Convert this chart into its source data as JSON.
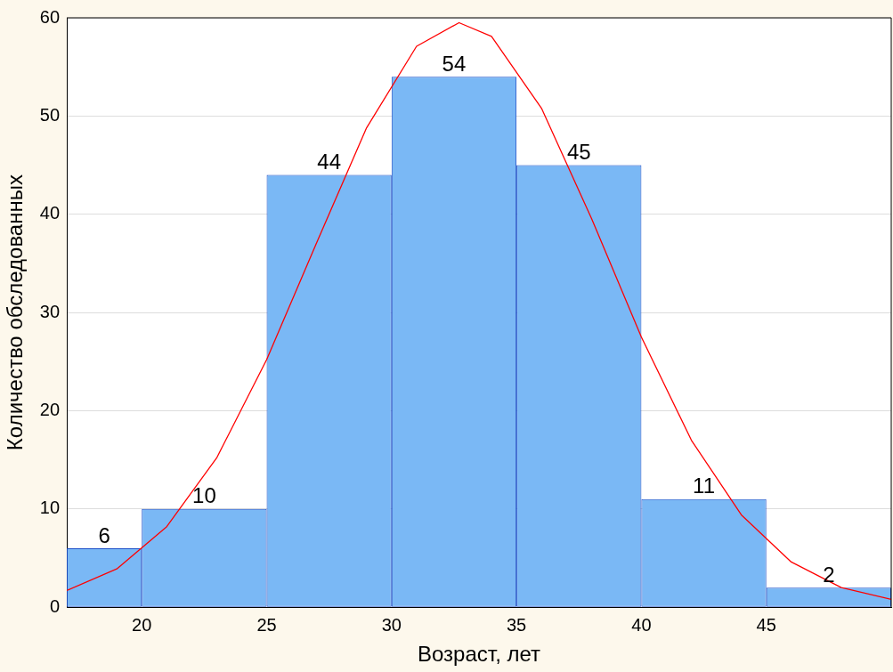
{
  "chart_data": {
    "type": "histogram",
    "xlabel": "Возраст, лет",
    "ylabel": "Количество обследованных",
    "bins": [
      17,
      20,
      25,
      30,
      35,
      40,
      45,
      50
    ],
    "values": [
      6,
      10,
      44,
      54,
      45,
      11,
      2
    ],
    "value_labels": [
      "6",
      "10",
      "44",
      "54",
      "45",
      "11",
      "2"
    ],
    "color": "#7ab8f5",
    "series": [
      {
        "type": "line",
        "color": "#ff0000",
        "marker": "none",
        "x": [
          17,
          19,
          21,
          23,
          25,
          27,
          29,
          31,
          32.7,
          34,
          36,
          38,
          40,
          42,
          44,
          46,
          48,
          50
        ],
        "values": [
          1.7,
          3.9,
          8.2,
          15.2,
          25.2,
          37.1,
          48.8,
          57.1,
          59.5,
          58.1,
          50.8,
          39.6,
          27.5,
          17,
          9.4,
          4.6,
          2,
          0.8
        ]
      }
    ],
    "xlim": [
      17,
      50
    ],
    "xticks": [
      20,
      25,
      30,
      35,
      40,
      45
    ],
    "ylim": [
      0,
      60
    ],
    "yticks": [
      0,
      10,
      20,
      30,
      40,
      50,
      60
    ],
    "grid": "y",
    "legend": false
  }
}
